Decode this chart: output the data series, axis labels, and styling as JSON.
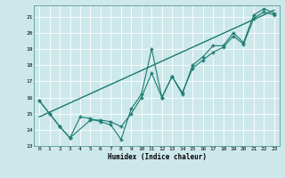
{
  "background_color": "#cde8eb",
  "grid_color": "#b0d4d8",
  "line_color": "#1a7a6e",
  "xlabel": "Humidex (Indice chaleur)",
  "xlim": [
    -0.5,
    23.5
  ],
  "ylim": [
    13,
    21.7
  ],
  "yticks": [
    13,
    14,
    15,
    16,
    17,
    18,
    19,
    20,
    21
  ],
  "xticks": [
    0,
    1,
    2,
    3,
    4,
    5,
    6,
    7,
    8,
    9,
    10,
    11,
    12,
    13,
    14,
    15,
    16,
    17,
    18,
    19,
    20,
    21,
    22,
    23
  ],
  "series1_x": [
    0,
    1,
    2,
    3,
    4,
    5,
    6,
    7,
    8,
    9,
    10,
    11,
    12,
    13,
    14,
    15,
    16,
    17,
    18,
    19,
    20,
    21,
    22,
    23
  ],
  "series1_y": [
    15.8,
    15.0,
    14.2,
    13.5,
    14.8,
    14.7,
    14.5,
    14.3,
    13.4,
    15.3,
    16.2,
    19.0,
    16.0,
    17.3,
    16.2,
    18.0,
    18.5,
    19.2,
    19.2,
    20.0,
    19.4,
    21.1,
    21.5,
    21.2
  ],
  "series2_x": [
    0,
    1,
    2,
    3,
    5,
    6,
    7,
    8,
    9,
    10,
    11,
    12,
    13,
    14,
    15,
    16,
    17,
    18,
    19,
    20,
    21,
    22,
    23
  ],
  "series2_y": [
    15.8,
    15.0,
    14.2,
    13.5,
    14.6,
    14.6,
    14.5,
    14.2,
    15.0,
    16.0,
    17.5,
    16.0,
    17.3,
    16.3,
    17.8,
    18.3,
    18.8,
    19.1,
    19.8,
    19.3,
    20.9,
    21.3,
    21.1
  ],
  "trend_x": [
    0,
    23
  ],
  "trend_y": [
    14.8,
    21.4
  ]
}
